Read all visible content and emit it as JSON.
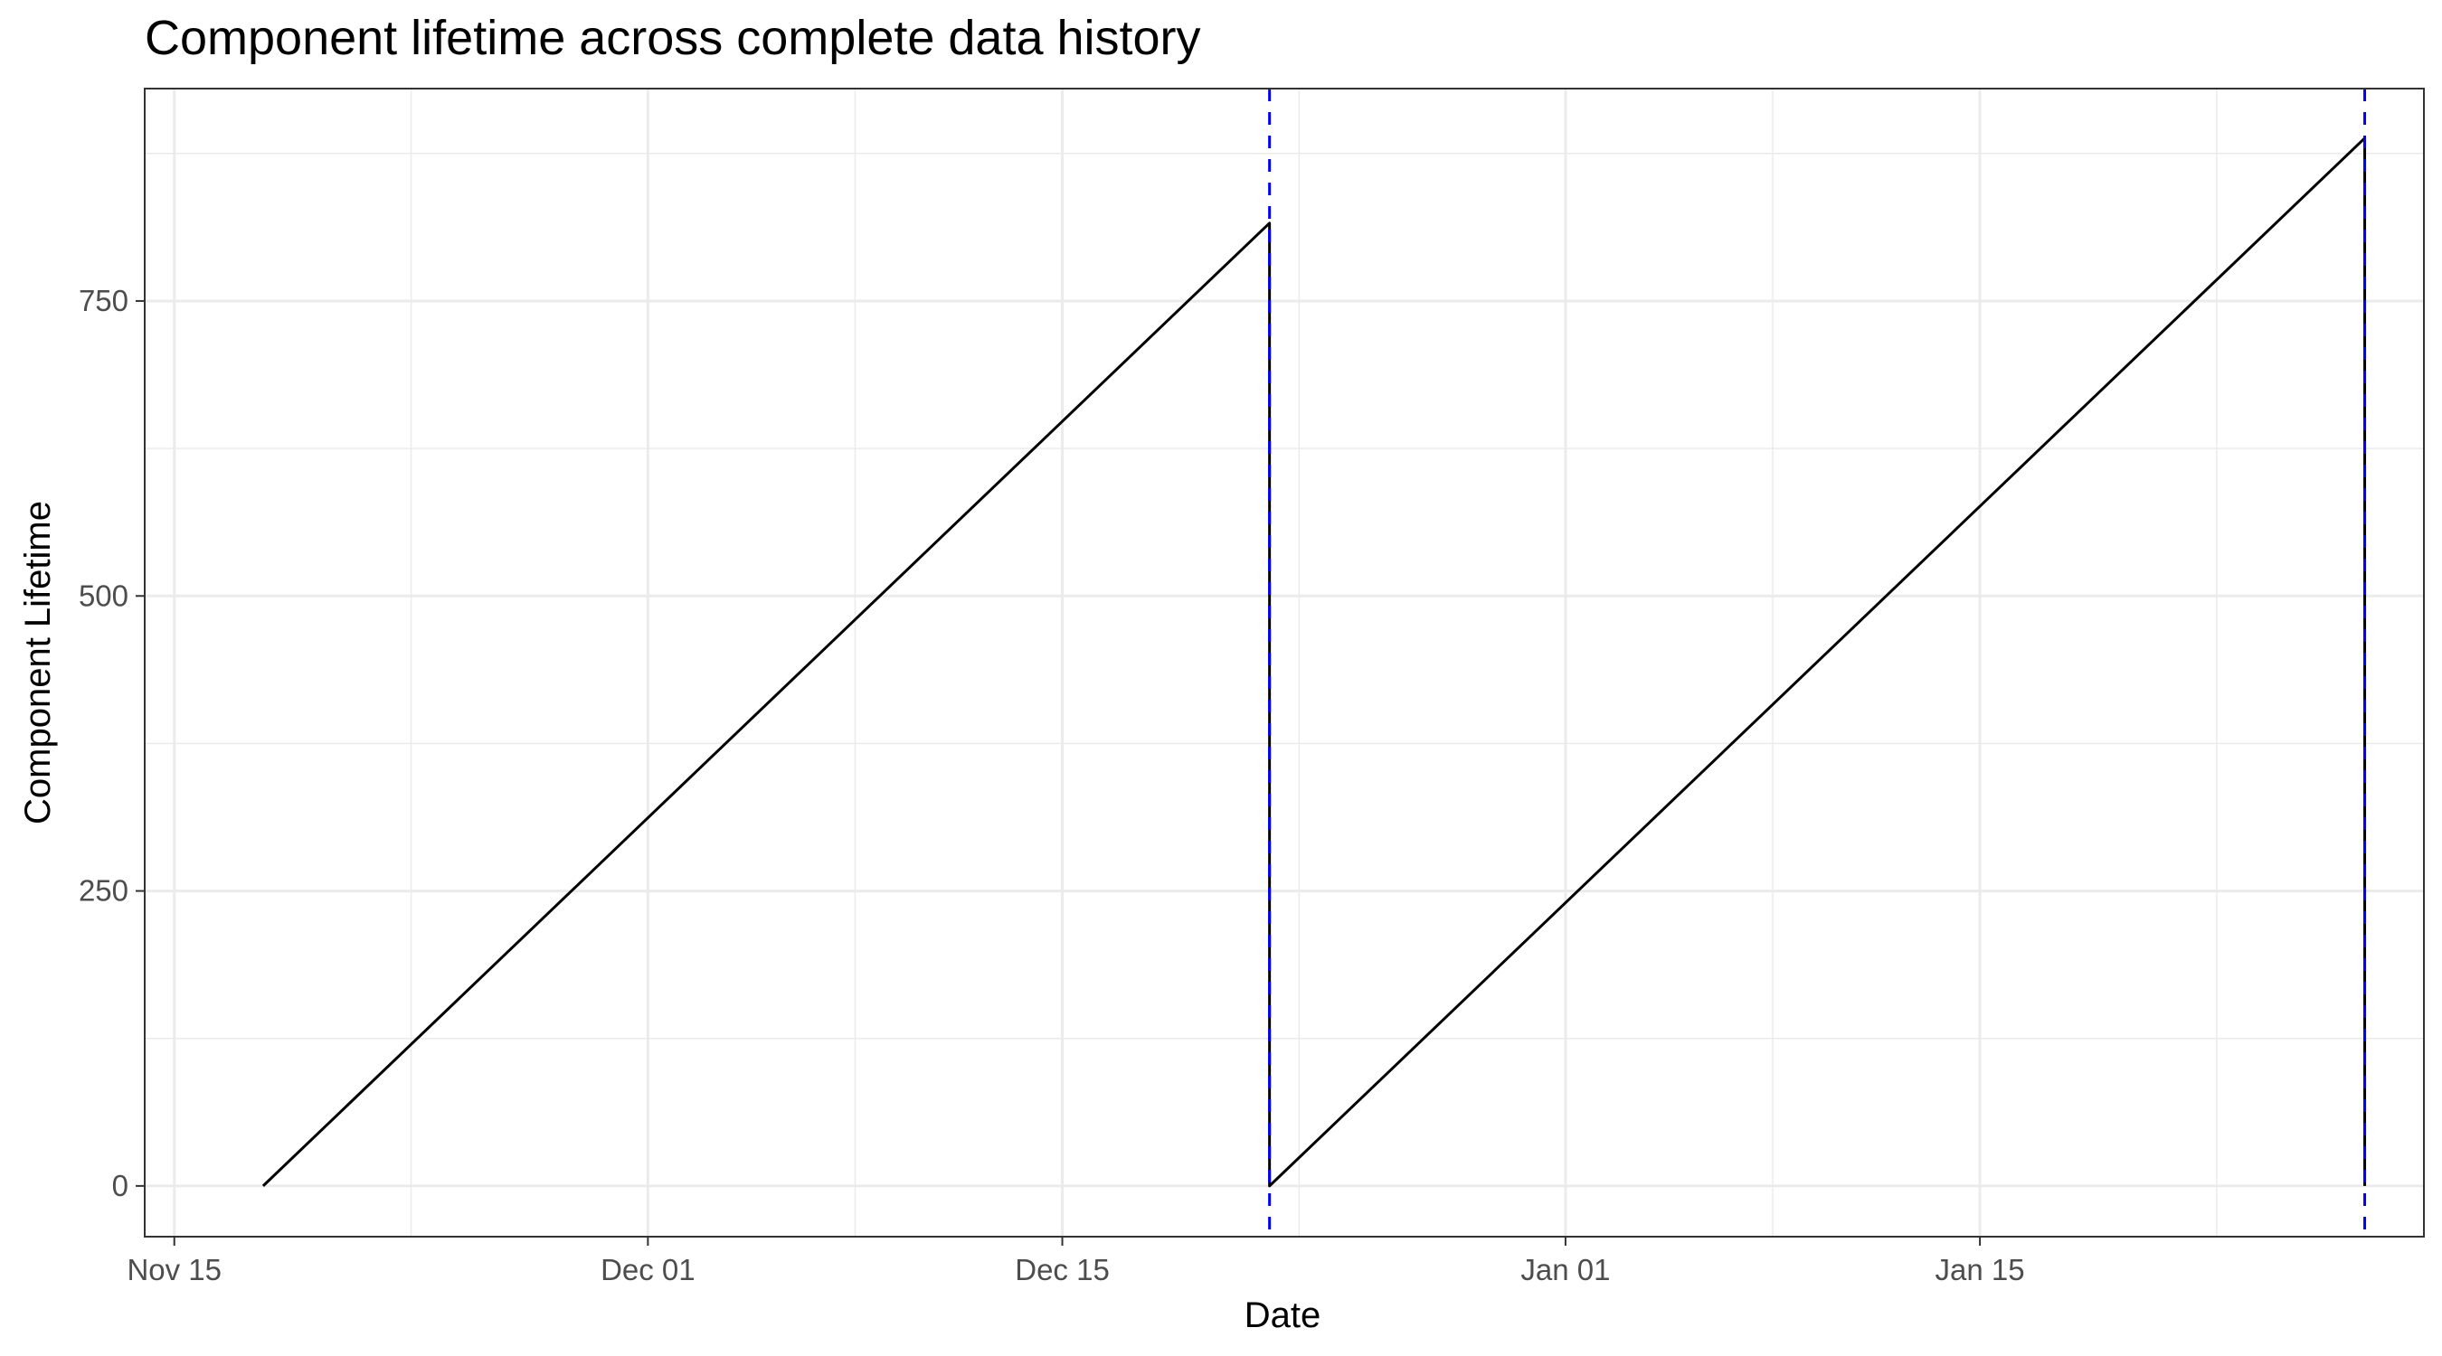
{
  "chart_data": {
    "type": "line",
    "title": "Component lifetime across complete data history",
    "xlabel": "Date",
    "ylabel": "Component Lifetime",
    "x_ticks": [
      {
        "date": "2023-11-15",
        "label": "Nov 15"
      },
      {
        "date": "2023-12-01",
        "label": "Dec 01"
      },
      {
        "date": "2023-12-15",
        "label": "Dec 15"
      },
      {
        "date": "2024-01-01",
        "label": "Jan 01"
      },
      {
        "date": "2024-01-15",
        "label": "Jan 15"
      }
    ],
    "x_minor_dates": [
      "2023-11-23",
      "2023-12-08",
      "2023-12-23",
      "2024-01-08",
      "2024-01-23"
    ],
    "xlim": [
      "2023-11-14",
      "2024-01-30"
    ],
    "y_ticks": [
      0,
      250,
      500,
      750
    ],
    "y_minor": [
      125,
      375,
      625,
      875
    ],
    "ylim": [
      -43,
      930
    ],
    "grid": true,
    "series": [
      {
        "color": "#000000",
        "points": [
          {
            "x": "2023-11-18",
            "y": 0
          },
          {
            "x": "2023-12-22",
            "y": 816
          },
          {
            "x": "2023-12-22",
            "y": 0
          },
          {
            "x": "2024-01-28",
            "y": 888
          },
          {
            "x": "2024-01-28",
            "y": 0
          }
        ]
      }
    ],
    "vlines": [
      {
        "x": "2023-12-22",
        "color": "#0000ff",
        "style": "dashed"
      },
      {
        "x": "2024-01-28",
        "color": "#0000ff",
        "style": "dashed"
      }
    ]
  }
}
